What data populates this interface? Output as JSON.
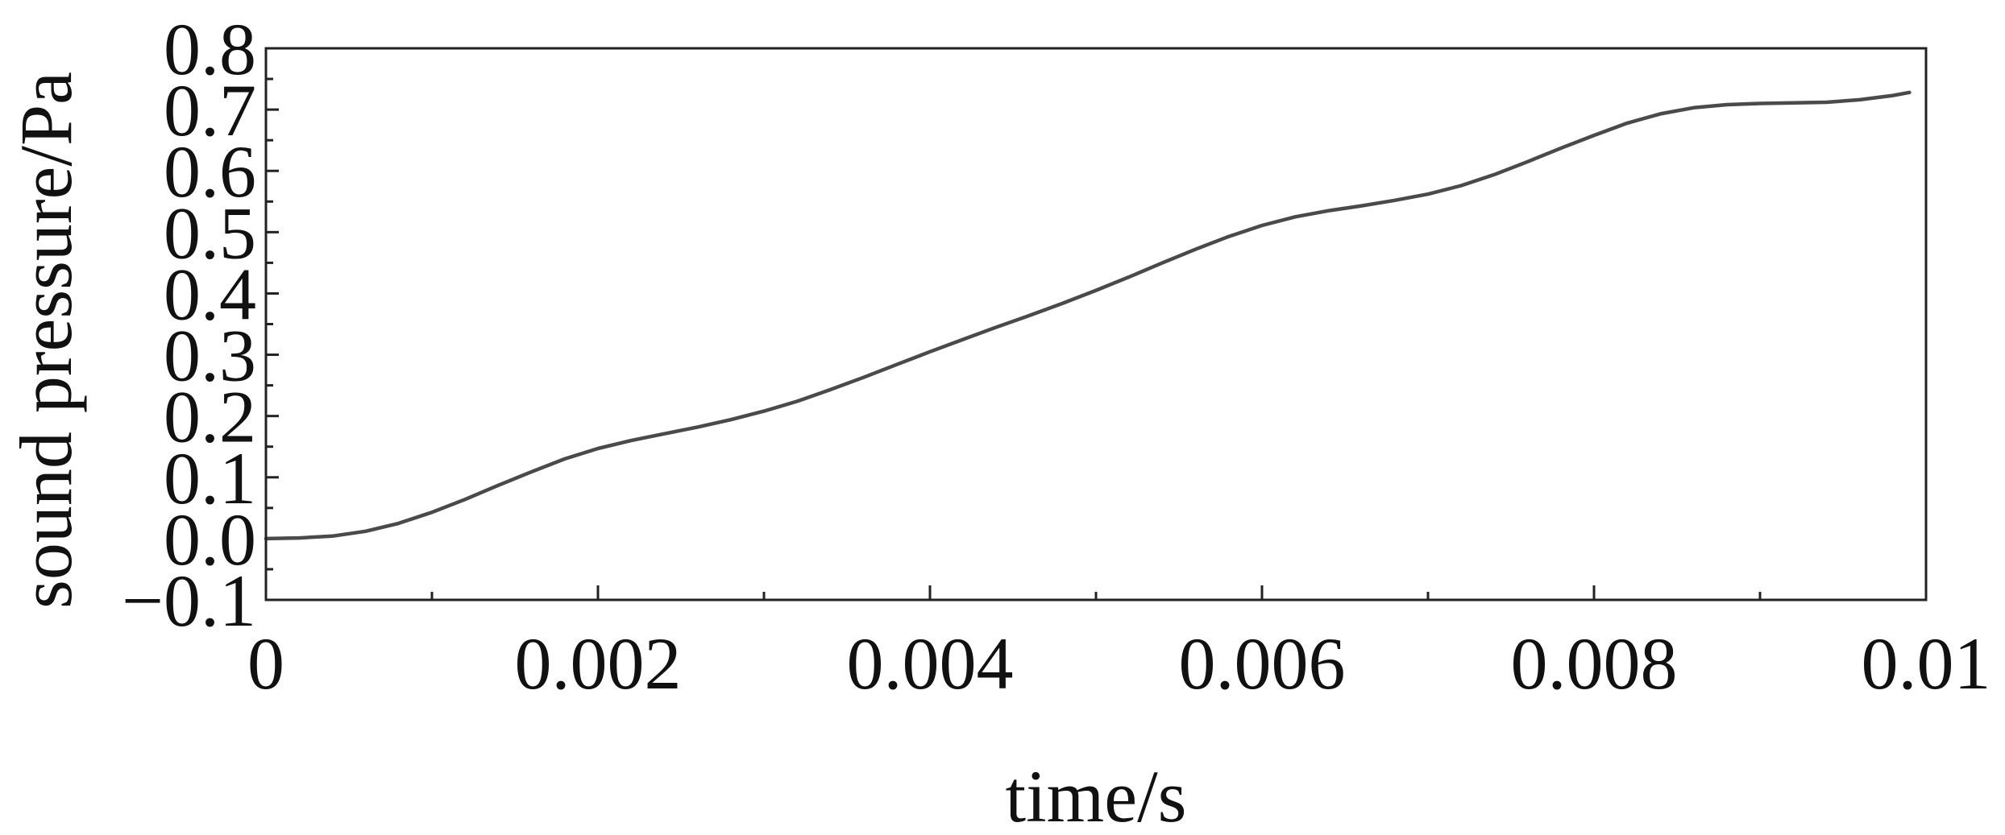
{
  "chart_data": {
    "type": "line",
    "title": "",
    "xlabel": "time/s",
    "ylabel": "sound pressure/Pa",
    "xlim": [
      0,
      0.01
    ],
    "ylim": [
      -0.1,
      0.8
    ],
    "x_ticks": [
      0,
      0.002,
      0.004,
      0.006,
      0.008,
      0.01
    ],
    "x_tick_labels": [
      "0",
      "0.002",
      "0.004",
      "0.006",
      "0.008",
      "0.01"
    ],
    "x_minor_ticks": [
      0.001,
      0.003,
      0.005,
      0.007,
      0.009
    ],
    "y_ticks": [
      -0.1,
      0.0,
      0.1,
      0.2,
      0.3,
      0.4,
      0.5,
      0.6,
      0.7,
      0.8
    ],
    "y_tick_labels": [
      "−0.1",
      "0.0",
      "0.1",
      "0.2",
      "0.3",
      "0.4",
      "0.5",
      "0.6",
      "0.7",
      "0.8"
    ],
    "grid": false,
    "legend": "none",
    "line_color": "#4a4a4a",
    "series": [
      {
        "x": [
          0,
          0.0002,
          0.0004,
          0.0006,
          0.0008,
          0.001,
          0.0012,
          0.0014,
          0.0016,
          0.0018,
          0.002,
          0.0022,
          0.0024,
          0.0026,
          0.0028,
          0.003,
          0.0032,
          0.0034,
          0.0036,
          0.0038,
          0.004,
          0.0042,
          0.0044,
          0.0046,
          0.0048,
          0.005,
          0.0052,
          0.0054,
          0.0056,
          0.0058,
          0.006,
          0.0062,
          0.0064,
          0.0066,
          0.0068,
          0.007,
          0.0072,
          0.0074,
          0.0076,
          0.0078,
          0.008,
          0.0082,
          0.0084,
          0.0086,
          0.0088,
          0.009,
          0.0092,
          0.0094,
          0.0096,
          0.0098,
          0.0099
        ],
        "values": [
          0.0,
          0.001,
          0.004,
          0.012,
          0.025,
          0.043,
          0.064,
          0.087,
          0.109,
          0.13,
          0.147,
          0.16,
          0.171,
          0.182,
          0.194,
          0.208,
          0.224,
          0.243,
          0.263,
          0.284,
          0.305,
          0.325,
          0.345,
          0.364,
          0.384,
          0.405,
          0.427,
          0.45,
          0.472,
          0.493,
          0.511,
          0.525,
          0.535,
          0.543,
          0.552,
          0.562,
          0.576,
          0.594,
          0.615,
          0.637,
          0.658,
          0.678,
          0.693,
          0.703,
          0.708,
          0.71,
          0.711,
          0.712,
          0.716,
          0.723,
          0.728
        ]
      }
    ]
  }
}
